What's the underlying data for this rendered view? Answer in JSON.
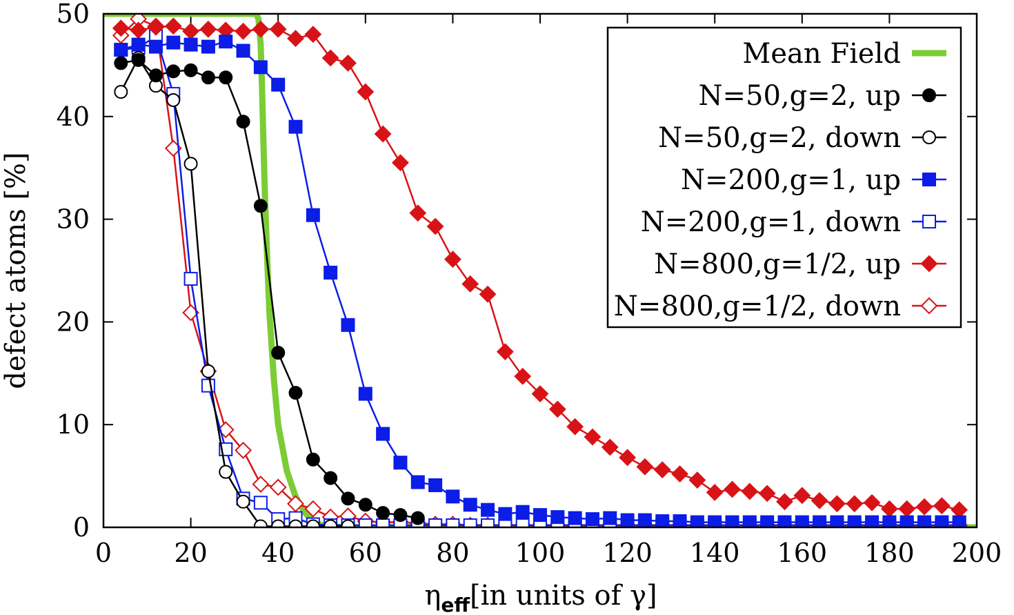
{
  "chart_data": {
    "type": "line",
    "title": "",
    "xlabel_symbol": "η",
    "xlabel_subscript": "eff",
    "xlabel_rest": "[in units of γ]",
    "ylabel": "defect atoms [%]",
    "xlim": [
      0,
      200
    ],
    "ylim": [
      0,
      50
    ],
    "xticks": [
      0,
      20,
      40,
      60,
      80,
      100,
      120,
      140,
      160,
      180,
      200
    ],
    "yticks": [
      0,
      10,
      20,
      30,
      40,
      50
    ],
    "legend_position": "top-right",
    "series": [
      {
        "name": "Mean Field",
        "color": "#7ccc35",
        "marker": "none",
        "x": [
          0,
          35,
          35.5,
          36,
          36.3,
          36.6,
          37,
          37.5,
          38,
          39,
          40,
          42,
          44,
          46,
          48,
          50,
          55,
          60,
          70,
          80,
          100,
          120,
          150,
          200
        ],
        "values": [
          50,
          50,
          49.5,
          47,
          43,
          38,
          32,
          26,
          21,
          14.5,
          10,
          5.5,
          3,
          1.5,
          0.6,
          0.2,
          0,
          0,
          0,
          0,
          0,
          0,
          0,
          0
        ]
      },
      {
        "name": "N=50,g=2, up",
        "color": "#000000",
        "marker": "filled-circle",
        "x": [
          4,
          8,
          12,
          16,
          20,
          24,
          28,
          32,
          36,
          40,
          44,
          48,
          52,
          56,
          60,
          64,
          68,
          72
        ],
        "values": [
          45.2,
          45.5,
          44,
          44.4,
          44.5,
          43.8,
          43.8,
          39.5,
          31.3,
          17,
          13.1,
          6.6,
          4.8,
          2.8,
          2.2,
          1.4,
          1.2,
          0.9
        ]
      },
      {
        "name": "N=50,g=2, down",
        "color": "#000000",
        "marker": "open-circle",
        "x": [
          4,
          8,
          12,
          16,
          20,
          24,
          28,
          32,
          36,
          40,
          44,
          48,
          52,
          56
        ],
        "values": [
          42.4,
          45.7,
          43,
          41.6,
          35.4,
          15.2,
          5.4,
          2.5,
          0.1,
          0.1,
          0.1,
          0.1,
          0.1,
          0.1
        ]
      },
      {
        "name": "N=200,g=1, up",
        "color": "#0b1de6",
        "marker": "filled-square",
        "x": [
          4,
          8,
          12,
          16,
          20,
          24,
          28,
          32,
          36,
          40,
          44,
          48,
          52,
          56,
          60,
          64,
          68,
          72,
          76,
          80,
          84,
          88,
          92,
          96,
          100,
          104,
          108,
          112,
          116,
          120,
          124,
          128,
          132,
          136,
          140,
          144,
          148,
          152,
          156,
          160,
          164,
          168,
          172,
          176,
          180,
          184,
          188,
          192,
          196
        ],
        "values": [
          46.5,
          47,
          46.8,
          47.2,
          47,
          46.8,
          47.3,
          46.4,
          44.8,
          43.1,
          39,
          30.4,
          24.8,
          19.7,
          13,
          9.1,
          6.3,
          4.4,
          4.1,
          3,
          2.2,
          1.7,
          1.3,
          1.5,
          1.2,
          1,
          0.9,
          0.8,
          0.9,
          0.7,
          0.7,
          0.6,
          0.6,
          0.5,
          0.5,
          0.5,
          0.5,
          0.5,
          0.5,
          0.5,
          0.5,
          0.5,
          0.5,
          0.5,
          0.5,
          0.5,
          0.5,
          0.5,
          0.5
        ]
      },
      {
        "name": "N=200,g=1, down",
        "color": "#0b1de6",
        "marker": "open-square",
        "x": [
          4,
          8,
          12,
          16,
          20,
          24,
          28,
          32,
          36,
          40,
          44,
          48,
          52,
          56,
          60,
          64,
          68,
          72,
          76,
          80,
          84,
          88,
          92,
          96,
          100,
          104,
          108,
          112,
          116,
          120,
          124,
          128,
          132,
          136,
          140,
          144,
          148,
          152,
          156,
          160,
          164,
          168,
          172,
          176,
          180,
          184,
          188,
          192,
          196
        ],
        "values": [
          46.5,
          46.7,
          47.8,
          42.2,
          24.2,
          13.8,
          7.6,
          2.8,
          2.4,
          0.8,
          0.9,
          0.3,
          0.2,
          0.2,
          0.2,
          0.2,
          0.2,
          0.2,
          0.2,
          0.2,
          0.2,
          0.2,
          0.2,
          0.2,
          0.2,
          0.2,
          0.2,
          0.2,
          0.2,
          0.2,
          0.2,
          0.2,
          0.2,
          0.2,
          0.2,
          0.2,
          0.2,
          0.2,
          0.2,
          0.2,
          0.2,
          0.2,
          0.2,
          0.2,
          0.2,
          0.2,
          0.2,
          0.2,
          0.2
        ]
      },
      {
        "name": "N=800,g=1/2, up",
        "color": "#d81317",
        "marker": "filled-diamond",
        "x": [
          4,
          8,
          12,
          16,
          20,
          24,
          28,
          32,
          36,
          40,
          44,
          48,
          52,
          56,
          60,
          64,
          68,
          72,
          76,
          80,
          84,
          88,
          92,
          96,
          100,
          104,
          108,
          112,
          116,
          120,
          124,
          128,
          132,
          136,
          140,
          144,
          148,
          152,
          156,
          160,
          164,
          168,
          172,
          176,
          180,
          184,
          188,
          192,
          196
        ],
        "values": [
          48.6,
          48.4,
          48.7,
          48.8,
          48.3,
          48.5,
          48.4,
          48.3,
          48.5,
          48.5,
          47.6,
          48,
          45.7,
          45.2,
          42.4,
          38.3,
          35.5,
          30.6,
          29.3,
          26.1,
          23.7,
          22.7,
          17.1,
          14.7,
          13,
          11.5,
          9.8,
          8.8,
          7.8,
          6.8,
          5.9,
          5.6,
          5.2,
          4.6,
          3.4,
          3.7,
          3.5,
          3.3,
          2.5,
          3.1,
          2.6,
          2.3,
          2.3,
          2.4,
          1.8,
          1.8,
          2,
          2.1,
          1.7
        ]
      },
      {
        "name": "N=800,g=1/2, down",
        "color": "#d81317",
        "marker": "open-diamond",
        "x": [
          4,
          8,
          12,
          16,
          20,
          24,
          28,
          32,
          36,
          40,
          44,
          48,
          52,
          56,
          60,
          64,
          68,
          72,
          76,
          80,
          84,
          88,
          92,
          96,
          100,
          104,
          108,
          112,
          116,
          120,
          124,
          128,
          132,
          136,
          140,
          144,
          148,
          152,
          156,
          160,
          164,
          168,
          172,
          176,
          180,
          184,
          188,
          192,
          196
        ],
        "values": [
          47.9,
          49.5,
          48.8,
          36.9,
          20.9,
          15.2,
          9.5,
          7.5,
          4.2,
          3.9,
          2.3,
          1.8,
          1,
          1.1,
          0.6,
          0.5,
          0.5,
          0.4,
          0.3,
          0.3,
          0.2,
          0.2,
          0.2,
          0.2,
          0.2,
          0.2,
          0.2,
          0.2,
          0.2,
          0.2,
          0.2,
          0.2,
          0.2,
          0.2,
          0.2,
          0.2,
          0.2,
          0.2,
          0.2,
          0.2,
          0.2,
          0.2,
          0.2,
          0.2,
          0.2,
          0.2,
          0.2,
          0.2,
          0.2
        ]
      }
    ]
  }
}
